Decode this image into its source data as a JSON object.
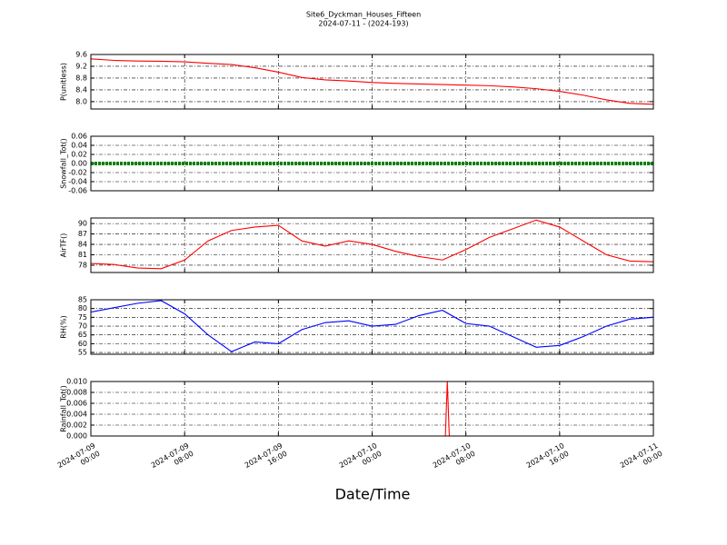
{
  "figure": {
    "title": "Site6_Dyckman_Houses_Fifteen",
    "subtitle": "2024-07-11 - (2024-193)",
    "xlabel": "Date/Time",
    "xlim": [
      "2024-07-09 00:00",
      "2024-07-11 00:00"
    ],
    "xticks": [
      {
        "value": "2024-07-09 00:00",
        "label": "2024-07-09\n00:00"
      },
      {
        "value": "2024-07-09 08:00",
        "label": "2024-07-09\n08:00"
      },
      {
        "value": "2024-07-09 16:00",
        "label": "2024-07-09\n16:00"
      },
      {
        "value": "2024-07-10 00:00",
        "label": "2024-07-10\n00:00"
      },
      {
        "value": "2024-07-10 08:00",
        "label": "2024-07-10\n08:00"
      },
      {
        "value": "2024-07-10 16:00",
        "label": "2024-07-10\n16:00"
      },
      {
        "value": "2024-07-11 00:00",
        "label": "2024-07-11\n00:00"
      }
    ]
  },
  "chart_data": [
    {
      "type": "line",
      "ylabel": "P(unitless)",
      "grid": true,
      "ylim": [
        7.75,
        9.6
      ],
      "yticks": [
        9.6,
        9.2,
        8.8,
        8.4,
        {
          "value": 8,
          "label": "8.0"
        }
      ],
      "x": [
        "2024-07-09 00:00",
        "2024-07-09 02:00",
        "2024-07-09 04:00",
        "2024-07-09 06:00",
        "2024-07-09 08:00",
        "2024-07-09 10:00",
        "2024-07-09 12:00",
        "2024-07-09 14:00",
        "2024-07-09 16:00",
        "2024-07-09 18:00",
        "2024-07-09 20:00",
        "2024-07-09 22:00",
        "2024-07-10 00:00",
        "2024-07-10 02:00",
        "2024-07-10 04:00",
        "2024-07-10 06:00",
        "2024-07-10 08:00",
        "2024-07-10 10:00",
        "2024-07-10 12:00",
        "2024-07-10 14:00",
        "2024-07-10 16:00",
        "2024-07-10 18:00",
        "2024-07-10 20:00",
        "2024-07-10 22:00",
        "2024-07-11 00:00"
      ],
      "series": [
        {
          "color": "#ff0000",
          "values": [
            9.45,
            9.4,
            9.38,
            9.37,
            9.35,
            9.3,
            9.26,
            9.15,
            9.0,
            8.82,
            8.74,
            8.7,
            8.65,
            8.62,
            8.6,
            8.58,
            8.56,
            8.54,
            8.5,
            8.44,
            8.35,
            8.22,
            8.06,
            7.94,
            7.91
          ]
        }
      ]
    },
    {
      "type": "line",
      "ylabel": "Snowfall_Tot()",
      "grid": true,
      "ylim": [
        -0.06,
        0.06
      ],
      "yticks": [
        0.06,
        0.04,
        0.02,
        {
          "value": 0,
          "label": "0.00"
        },
        -0.02,
        -0.04,
        -0.06
      ],
      "x": [
        "2024-07-09 00:00",
        "2024-07-09 02:00",
        "2024-07-09 04:00",
        "2024-07-09 06:00",
        "2024-07-09 08:00",
        "2024-07-09 10:00",
        "2024-07-09 12:00",
        "2024-07-09 14:00",
        "2024-07-09 16:00",
        "2024-07-09 18:00",
        "2024-07-09 20:00",
        "2024-07-09 22:00",
        "2024-07-10 00:00",
        "2024-07-10 02:00",
        "2024-07-10 04:00",
        "2024-07-10 06:00",
        "2024-07-10 08:00",
        "2024-07-10 10:00",
        "2024-07-10 12:00",
        "2024-07-10 14:00",
        "2024-07-10 16:00",
        "2024-07-10 18:00",
        "2024-07-10 20:00",
        "2024-07-10 22:00",
        "2024-07-11 00:00"
      ],
      "series": [
        {
          "color": "#008000",
          "values": [
            0,
            0,
            0,
            0,
            0,
            0,
            0,
            0,
            0,
            0,
            0,
            0,
            0,
            0,
            0,
            0,
            0,
            0,
            0,
            0,
            0,
            0,
            0,
            0,
            0
          ]
        }
      ]
    },
    {
      "type": "line",
      "ylabel": "AirTF()",
      "grid": true,
      "ylim": [
        75.9,
        91.6
      ],
      "yticks": [
        90,
        87,
        84,
        81,
        78
      ],
      "x": [
        "2024-07-09 00:00",
        "2024-07-09 02:00",
        "2024-07-09 04:00",
        "2024-07-09 06:00",
        "2024-07-09 08:00",
        "2024-07-09 10:00",
        "2024-07-09 12:00",
        "2024-07-09 14:00",
        "2024-07-09 16:00",
        "2024-07-09 18:00",
        "2024-07-09 20:00",
        "2024-07-09 22:00",
        "2024-07-10 00:00",
        "2024-07-10 02:00",
        "2024-07-10 04:00",
        "2024-07-10 06:00",
        "2024-07-10 08:00",
        "2024-07-10 10:00",
        "2024-07-10 12:00",
        "2024-07-10 14:00",
        "2024-07-10 16:00",
        "2024-07-10 18:00",
        "2024-07-10 20:00",
        "2024-07-10 22:00",
        "2024-07-11 00:00"
      ],
      "series": [
        {
          "color": "#ff0000",
          "values": [
            78.5,
            78.2,
            77.2,
            77.0,
            79.5,
            85,
            88,
            89,
            89.5,
            85,
            83.5,
            85,
            84,
            82,
            80.5,
            79.5,
            82.5,
            86,
            88.5,
            91,
            89,
            85,
            81,
            79.2,
            79
          ]
        }
      ]
    },
    {
      "type": "line",
      "ylabel": "RH(%)",
      "grid": true,
      "ylim": [
        54,
        85
      ],
      "yticks": [
        85,
        80,
        75,
        70,
        65,
        60,
        55
      ],
      "x": [
        "2024-07-09 00:00",
        "2024-07-09 02:00",
        "2024-07-09 04:00",
        "2024-07-09 06:00",
        "2024-07-09 08:00",
        "2024-07-09 10:00",
        "2024-07-09 12:00",
        "2024-07-09 14:00",
        "2024-07-09 16:00",
        "2024-07-09 18:00",
        "2024-07-09 20:00",
        "2024-07-09 22:00",
        "2024-07-10 00:00",
        "2024-07-10 02:00",
        "2024-07-10 04:00",
        "2024-07-10 06:00",
        "2024-07-10 08:00",
        "2024-07-10 10:00",
        "2024-07-10 12:00",
        "2024-07-10 14:00",
        "2024-07-10 16:00",
        "2024-07-10 18:00",
        "2024-07-10 20:00",
        "2024-07-10 22:00",
        "2024-07-11 00:00"
      ],
      "series": [
        {
          "color": "#0000ff",
          "values": [
            78,
            80.5,
            83,
            84.5,
            77,
            65,
            55.5,
            61,
            60,
            68,
            72,
            73,
            70,
            71,
            76,
            79,
            71.5,
            70,
            64,
            58,
            59,
            64,
            70,
            74,
            75
          ]
        }
      ]
    },
    {
      "type": "line",
      "ylabel": "Rainfall_Tot()",
      "grid": true,
      "ylim": [
        0,
        0.01
      ],
      "yticks": [
        {
          "value": 0.01,
          "label": "0.010"
        },
        0.008,
        0.006,
        0.004,
        0.002,
        {
          "value": 0,
          "label": "0.000"
        }
      ],
      "x": [
        "2024-07-09 00:00",
        "2024-07-10 06:15",
        "2024-07-10 06:25",
        "2024-07-10 06:35",
        "2024-07-11 00:00"
      ],
      "series": [
        {
          "color": "#ff0000",
          "values": [
            0,
            0,
            0.01,
            0,
            0
          ]
        }
      ]
    }
  ]
}
